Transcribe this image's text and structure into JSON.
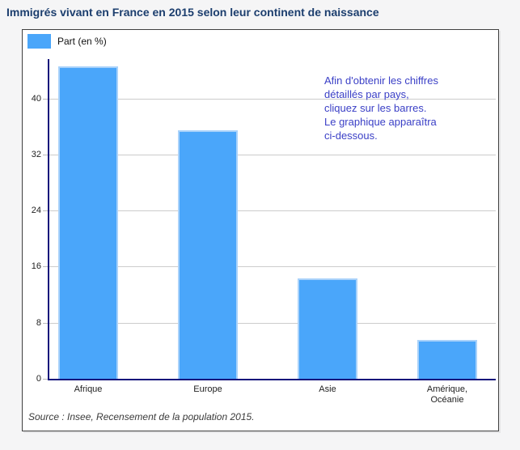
{
  "page": {
    "title": "Immigrés vivant en France en 2015 selon leur continent de naissance"
  },
  "legend": {
    "label": "Part (en %)",
    "swatch_color": "#4aa6fa"
  },
  "annotation": {
    "text": "Afin d'obtenir les chiffres\ndétaillés par pays,\ncliquez sur les barres.\nLe graphique apparaîtra\nci-dessous.",
    "color": "#3a3fc6"
  },
  "source": "Source : Insee, Recensement de la population 2015.",
  "chart_data": {
    "type": "bar",
    "title": "Immigrés vivant en France en 2015 selon leur continent de naissance",
    "series_name": "Part (en %)",
    "categories": [
      "Afrique",
      "Europe",
      "Asie",
      "Amérique, Océanie"
    ],
    "categories_display": [
      "Afrique",
      "Europe",
      "Asie",
      "Amérique,\nOcéanie"
    ],
    "values": [
      44.6,
      35.4,
      14.3,
      5.6
    ],
    "xlabel": "",
    "ylabel": "Part (en %)",
    "ylim": [
      0,
      45.6
    ],
    "yticks": [
      0,
      8,
      16,
      24,
      32,
      40
    ],
    "grid": true,
    "legend_position": "top-left",
    "bar_color": "#4aa6fa",
    "bar_edge_color": "#a9d2fa",
    "axis_color": "#15157b",
    "grid_color": "#cccccc"
  }
}
